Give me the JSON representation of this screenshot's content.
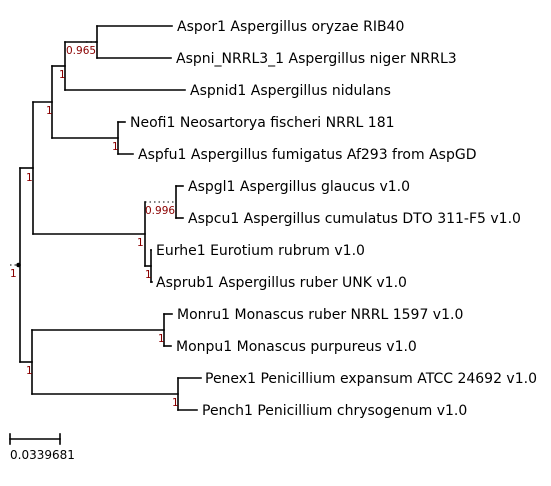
{
  "leaves": [
    "Aspor1 Aspergillus oryzae RIB40",
    "Aspni_NRRL3_1 Aspergillus niger NRRL3",
    "Aspnid1 Aspergillus nidulans",
    "Neofi1 Neosartorya fischeri NRRL 181",
    "Aspfu1 Aspergillus fumigatus Af293 from AspGD",
    "Aspgl1 Aspergillus glaucus v1.0",
    "Aspcu1 Aspergillus cumulatus DTO 311-F5 v1.0",
    "Eurhe1 Eurotium rubrum v1.0",
    "Asprub1 Aspergillus ruber UNK v1.0",
    "Monru1 Monascus ruber NRRL 1597 v1.0",
    "Monpu1 Monascus purpureus v1.0",
    "Penex1 Penicillium expansum ATCC 24692 v1.0",
    "Pench1 Penicillium chrysogenum v1.0"
  ],
  "support_values": [
    "0.965",
    "1",
    "1",
    "1",
    "1",
    "0.996",
    "1",
    "1",
    "1",
    "1",
    "1",
    "1",
    "1"
  ],
  "scale_bar": {
    "value": "0.0339681"
  },
  "colors": {
    "branch": "#000000",
    "support": "#8b0000",
    "dotted": "#555555"
  }
}
